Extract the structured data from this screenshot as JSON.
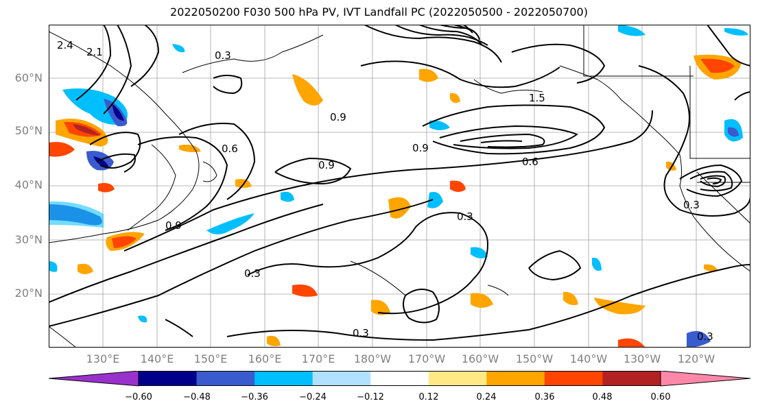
{
  "title": "2022050200 F030 500 hPa PV, IVT Landfall PC (2022050500 - 2022050700)",
  "latitude_labels": [
    "60°N",
    "50°N",
    "40°N",
    "30°N",
    "20°N"
  ],
  "longitude_labels": [
    "130°E",
    "140°E",
    "150°E",
    "160°E",
    "170°E",
    "180°W",
    "170°W",
    "160°W",
    "150°W",
    "140°W",
    "130°W",
    "120°W"
  ],
  "colorbar": {
    "tick_labels": [
      "−0.60",
      "−0.48",
      "−0.36",
      "−0.24",
      "−0.12",
      "0.12",
      "0.24",
      "0.36",
      "0.48",
      "0.60"
    ],
    "colors": [
      "#9932cc",
      "#00008b",
      "#3a5bcd",
      "#00bfff",
      "#b0e2ff",
      "#ffffff",
      "#ffe987",
      "#ffa500",
      "#ff4500",
      "#b22222",
      "#ff88aa"
    ]
  },
  "contour_labels": [
    "0.3",
    "0.6",
    "0.9",
    "1.5",
    "2.1",
    "2.4",
    "0.3",
    "0.3",
    "0.3",
    "0.3",
    "0.3",
    "0.9",
    "0.9",
    "0.6",
    "0.9"
  ]
}
